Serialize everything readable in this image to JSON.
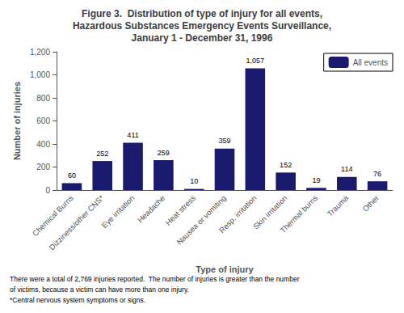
{
  "chart_data": {
    "type": "bar",
    "title": "Figure 3.  Distribution of type of injury for all events,\nHazardous Substances Emergency Events Surveillance,\nJanuary 1 - December 31, 1996",
    "categories": [
      "Chemical Burns",
      "Dizziness/other CNS*",
      "Eye irritation",
      "Headache",
      "Heat stress",
      "Nausea or vomiting",
      "Resp. irritation",
      "Skin irritation",
      "Thermal burns",
      "Trauma",
      "Other"
    ],
    "series": [
      {
        "name": "All events",
        "color": "#1a1a6e",
        "values": [
          60,
          252,
          411,
          259,
          10,
          359,
          1057,
          152,
          19,
          114,
          76
        ],
        "value_labels": [
          "60",
          "252",
          "411",
          "259",
          "10",
          "359",
          "1,057",
          "152",
          "19",
          "114",
          "76"
        ]
      }
    ],
    "xlabel": "Type of injury",
    "ylabel": "Number of injuries",
    "ylim": [
      0,
      1200
    ],
    "yticks": [
      0,
      200,
      400,
      600,
      800,
      {
        "value": 1000,
        "label": "1,000"
      },
      {
        "value": 1200,
        "label": "1,200"
      }
    ],
    "data_labels": true,
    "legend": "upper right",
    "grid": false,
    "annotations": [
      "There were a total of 2,769 injuries reported.  The number of injuries is greater than the number",
      "of victims, because a victim can have more than one injury.",
      "*Central nervous system symptoms or signs."
    ]
  }
}
